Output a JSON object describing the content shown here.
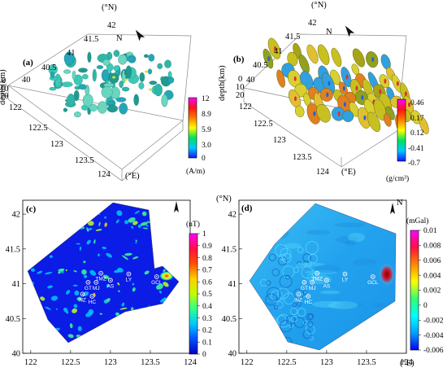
{
  "chart_data": [
    {
      "panel": "(a)",
      "type": "heatmap",
      "view": "3d-isosurface",
      "north_label": "N",
      "lat_unit": "(°N)",
      "lon_unit": "(°E)",
      "lat_ticks": [
        "42",
        "41.5",
        "41",
        "40.5",
        "40"
      ],
      "lon_ticks": [
        "122",
        "122.5",
        "123",
        "123.5",
        "124"
      ],
      "depth_label": "depth(km)",
      "depth_ticks": [
        "0",
        "10",
        "20"
      ],
      "colorbar": {
        "ticks": [
          "12",
          "8.9",
          "5.9",
          "3.0",
          "0"
        ],
        "unit": "(A/m)",
        "range": [
          0,
          12
        ],
        "colors": [
          "#1515ff",
          "#00c8ff",
          "#00e060",
          "#ffff00",
          "#ff7a00",
          "#ff1515",
          "#ff00ff"
        ]
      }
    },
    {
      "panel": "(b)",
      "type": "heatmap",
      "view": "3d-isosurface",
      "north_label": "N",
      "lat_unit": "(°N)",
      "lon_unit": "(°E)",
      "lat_ticks": [
        "42",
        "41.5",
        "41",
        "40.5",
        "40"
      ],
      "lon_ticks": [
        "122",
        "122.5",
        "123",
        "123.5",
        "124"
      ],
      "depth_label": "depth(km)",
      "depth_ticks": [
        "0",
        "10",
        "20"
      ],
      "colorbar": {
        "ticks": [
          "0.46",
          "0.17",
          "0.12",
          "-0.41",
          "-0.7"
        ],
        "unit": "(g/cm³)",
        "range": [
          -0.7,
          0.46
        ],
        "colors": [
          "#1515ff",
          "#00c8ff",
          "#00e060",
          "#ffff00",
          "#ff7a00",
          "#ff1515",
          "#ff00ff"
        ]
      }
    },
    {
      "panel": "(c)",
      "type": "heatmap",
      "view": "map",
      "x_ticks": [
        "122",
        "122.5",
        "123",
        "123.5",
        "124"
      ],
      "y_ticks": [
        "42",
        "41.5",
        "41",
        "40.5",
        "40"
      ],
      "xlim": [
        121.9,
        124
      ],
      "ylim": [
        40,
        42.2
      ],
      "colorbar": {
        "unit": "(nT)",
        "ticks": [
          "1",
          "0.9",
          "0.8",
          "0.7",
          "0.6",
          "0.5",
          "0.4",
          "0.3",
          "0.2",
          "0.1",
          "0"
        ],
        "range": [
          0,
          1
        ],
        "colors": [
          "#0000c0",
          "#0050ff",
          "#00c8ff",
          "#30ff90",
          "#c0ff00",
          "#ffd000",
          "#ff5000",
          "#ff1040",
          "#ff00ff"
        ]
      },
      "sites": [
        {
          "name": "TMZ",
          "lon": 122.88,
          "lat": 41.15
        },
        {
          "name": "LY",
          "lon": 123.23,
          "lat": 41.14
        },
        {
          "name": "GT",
          "lon": 122.72,
          "lat": 41.02
        },
        {
          "name": "MJ",
          "lon": 122.82,
          "lat": 41.02
        },
        {
          "name": "AS",
          "lon": 123.0,
          "lat": 41.05
        },
        {
          "name": "GCL",
          "lon": 123.58,
          "lat": 41.1
        },
        {
          "name": "NZ",
          "lon": 122.65,
          "lat": 40.85
        },
        {
          "name": "HC",
          "lon": 122.77,
          "lat": 40.82
        }
      ]
    },
    {
      "panel": "(d)",
      "type": "heatmap",
      "view": "map",
      "north_label": "N",
      "lat_unit": "(°N)",
      "lon_unit": "(°E)",
      "x_ticks": [
        "122",
        "122.5",
        "123",
        "123.5",
        "124"
      ],
      "y_ticks": [
        "42",
        "41.5",
        "41",
        "40.5",
        "40"
      ],
      "xlim": [
        121.9,
        124
      ],
      "ylim": [
        40,
        42.2
      ],
      "colorbar": {
        "unit": "(mGal)",
        "ticks": [
          "0.01",
          "0.008",
          "0.006",
          "0.004",
          "0.002",
          "0",
          "-0.002",
          "-0.004",
          "-0.006"
        ],
        "range": [
          -0.006,
          0.01
        ],
        "colors": [
          "#0000ff",
          "#00a0ff",
          "#00ffff",
          "#30ff70",
          "#ffff00",
          "#ff8800",
          "#ff1040",
          "#ff00ff"
        ]
      },
      "sites": [
        {
          "name": "TMZ",
          "lon": 122.88,
          "lat": 41.15
        },
        {
          "name": "LY",
          "lon": 123.23,
          "lat": 41.14
        },
        {
          "name": "GT",
          "lon": 122.72,
          "lat": 41.02
        },
        {
          "name": "MJ",
          "lon": 122.82,
          "lat": 41.02
        },
        {
          "name": "AS",
          "lon": 123.0,
          "lat": 41.05
        },
        {
          "name": "GCL",
          "lon": 123.58,
          "lat": 41.1
        },
        {
          "name": "NZ",
          "lon": 122.65,
          "lat": 40.85
        },
        {
          "name": "HC",
          "lon": 122.77,
          "lat": 40.82
        }
      ]
    }
  ]
}
